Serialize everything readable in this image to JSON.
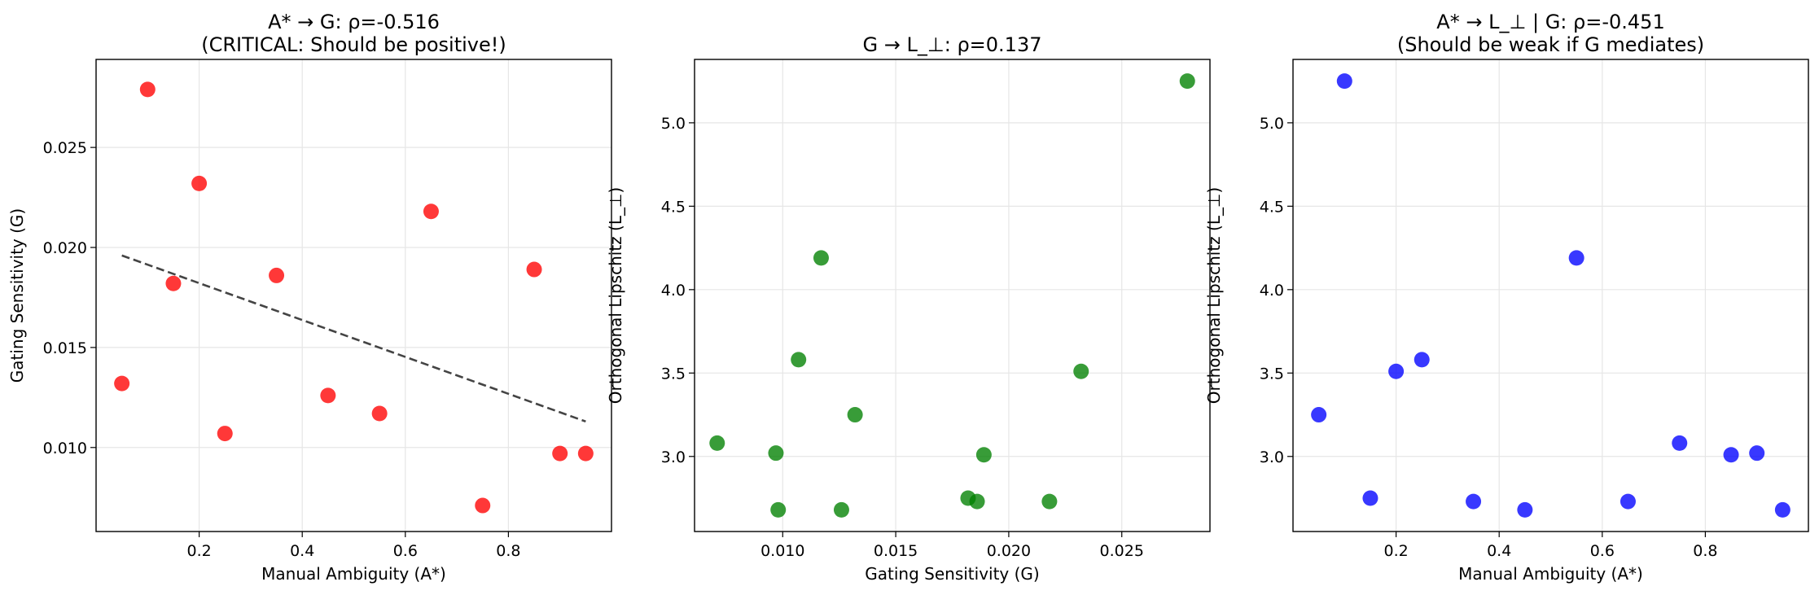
{
  "chart_data": [
    {
      "type": "scatter",
      "title_lines": [
        "A* → G: ρ=-0.516",
        "(CRITICAL: Should be positive!)"
      ],
      "xlabel": "Manual Ambiguity (A*)",
      "ylabel": "Gating Sensitivity (G)",
      "xlim": [
        0.0,
        1.0
      ],
      "ylim": [
        0.0058,
        0.0294
      ],
      "xticks": [
        0.2,
        0.4,
        0.6,
        0.8
      ],
      "xtick_labels": [
        "0.2",
        "0.4",
        "0.6",
        "0.8"
      ],
      "yticks": [
        0.01,
        0.015,
        0.02,
        0.025
      ],
      "ytick_labels": [
        "0.010",
        "0.015",
        "0.020",
        "0.025"
      ],
      "grid": true,
      "color": "#ff0000",
      "points": [
        {
          "x": 0.05,
          "y": 0.0132
        },
        {
          "x": 0.1,
          "y": 0.0279
        },
        {
          "x": 0.15,
          "y": 0.0182
        },
        {
          "x": 0.2,
          "y": 0.0232
        },
        {
          "x": 0.25,
          "y": 0.0107
        },
        {
          "x": 0.35,
          "y": 0.0186
        },
        {
          "x": 0.45,
          "y": 0.0126
        },
        {
          "x": 0.55,
          "y": 0.0117
        },
        {
          "x": 0.65,
          "y": 0.0218
        },
        {
          "x": 0.75,
          "y": 0.0071
        },
        {
          "x": 0.85,
          "y": 0.0189
        },
        {
          "x": 0.9,
          "y": 0.0097
        },
        {
          "x": 0.95,
          "y": 0.0097
        }
      ],
      "trend_line": {
        "x": [
          0.05,
          0.95
        ],
        "y": [
          0.0196,
          0.0113
        ],
        "style": "dashed",
        "color": "#444444"
      }
    },
    {
      "type": "scatter",
      "title_lines": [
        "G → L_⊥: ρ=0.137"
      ],
      "xlabel": "Gating Sensitivity (G)",
      "ylabel": "Orthogonal Lipschitz (L_⊥)",
      "xlim": [
        0.0061,
        0.0289
      ],
      "ylim": [
        2.55,
        5.38
      ],
      "xticks": [
        0.01,
        0.015,
        0.02,
        0.025
      ],
      "xtick_labels": [
        "0.010",
        "0.015",
        "0.020",
        "0.025"
      ],
      "yticks": [
        3.0,
        3.5,
        4.0,
        4.5,
        5.0
      ],
      "ytick_labels": [
        "3.0",
        "3.5",
        "4.0",
        "4.5",
        "5.0"
      ],
      "grid": true,
      "color": "#008000",
      "points": [
        {
          "x": 0.0071,
          "y": 3.08
        },
        {
          "x": 0.0097,
          "y": 3.02
        },
        {
          "x": 0.0098,
          "y": 2.68
        },
        {
          "x": 0.0107,
          "y": 3.58
        },
        {
          "x": 0.0117,
          "y": 4.19
        },
        {
          "x": 0.0126,
          "y": 2.68
        },
        {
          "x": 0.0132,
          "y": 3.25
        },
        {
          "x": 0.0182,
          "y": 2.75
        },
        {
          "x": 0.0186,
          "y": 2.73
        },
        {
          "x": 0.0189,
          "y": 3.01
        },
        {
          "x": 0.0218,
          "y": 2.73
        },
        {
          "x": 0.0232,
          "y": 3.51
        },
        {
          "x": 0.0279,
          "y": 5.25
        }
      ]
    },
    {
      "type": "scatter",
      "title_lines": [
        "A* → L_⊥ | G: ρ=-0.451",
        "(Should be weak if G mediates)"
      ],
      "xlabel": "Manual Ambiguity (A*)",
      "ylabel": "Orthogonal Lipschitz (L_⊥)",
      "xlim": [
        0.0,
        1.0
      ],
      "ylim": [
        2.55,
        5.38
      ],
      "xticks": [
        0.2,
        0.4,
        0.6,
        0.8
      ],
      "xtick_labels": [
        "0.2",
        "0.4",
        "0.6",
        "0.8"
      ],
      "yticks": [
        3.0,
        3.5,
        4.0,
        4.5,
        5.0
      ],
      "ytick_labels": [
        "3.0",
        "3.5",
        "4.0",
        "4.5",
        "5.0"
      ],
      "grid": true,
      "color": "#0000ff",
      "points": [
        {
          "x": 0.05,
          "y": 3.25
        },
        {
          "x": 0.1,
          "y": 5.25
        },
        {
          "x": 0.15,
          "y": 2.75
        },
        {
          "x": 0.2,
          "y": 3.51
        },
        {
          "x": 0.25,
          "y": 3.58
        },
        {
          "x": 0.35,
          "y": 2.73
        },
        {
          "x": 0.45,
          "y": 2.68
        },
        {
          "x": 0.55,
          "y": 4.19
        },
        {
          "x": 0.65,
          "y": 2.73
        },
        {
          "x": 0.75,
          "y": 3.08
        },
        {
          "x": 0.85,
          "y": 3.01
        },
        {
          "x": 0.9,
          "y": 3.02
        },
        {
          "x": 0.95,
          "y": 2.68
        }
      ]
    }
  ]
}
